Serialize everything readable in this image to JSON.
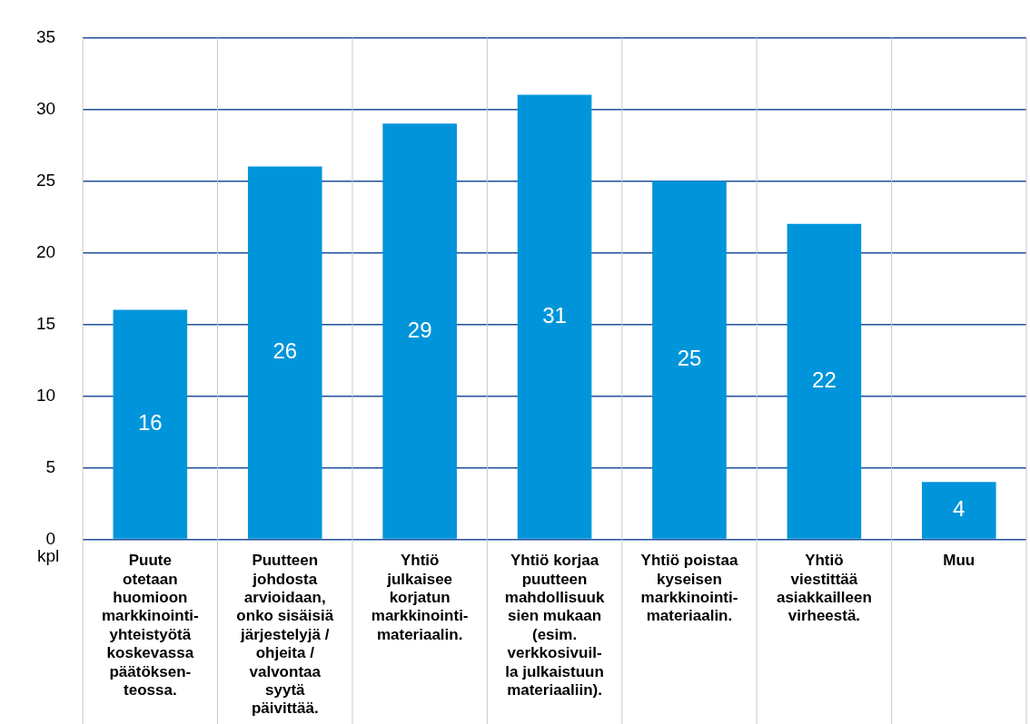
{
  "chart_data": {
    "type": "bar",
    "categories": [
      "Puute\notetaan\nhuomioon\nmarkkinointi-\nyhteistyötä\nkoskevassa\npäätöksen-\nteossa.",
      "Puutteen\njohdosta\narvioidaan,\nonko sisäisiä\njärjestelyjä /\nohjeita /\nvalvontaa\nsyytä\npäivittää.",
      "Yhtiö\njulkaisee\nkorjatun\nmarkkinointi-\nmateriaalin.",
      "Yhtiö korjaa\npuutteen\nmahdollisuuk\nsien mukaan\n(esim.\nverkkosivuil-\nla julkaistuun\nmateriaaliin).",
      "Yhtiö poistaa\nkyseisen\nmarkkinointi-\nmateriaalin.",
      "Yhtiö\nviestittää\nasiakkailleen\nvirheestä.",
      "Muu"
    ],
    "values": [
      16,
      26,
      29,
      31,
      25,
      22,
      4
    ],
    "color": "#0095da",
    "ylabel": "kpl",
    "ylim": [
      0,
      35
    ],
    "yticks": [
      0,
      5,
      10,
      15,
      20,
      25,
      30,
      35
    ],
    "grid": true,
    "data_labels": true
  }
}
